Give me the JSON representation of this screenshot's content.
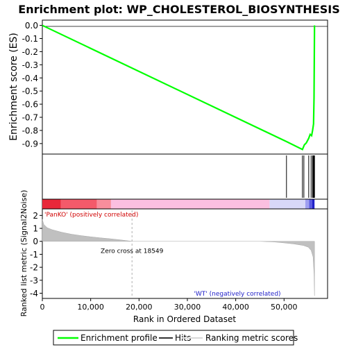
{
  "chart_data": {
    "type": "line",
    "title": "Enrichment plot: WP_CHOLESTEROL_BIOSYNTHESIS",
    "top_panel": {
      "ylabel": "Enrichment score (ES)",
      "ylim": [
        -0.98,
        0.04
      ],
      "yticks": [
        0.0,
        -0.1,
        -0.2,
        -0.3,
        -0.4,
        -0.5,
        -0.6,
        -0.7,
        -0.8,
        -0.9
      ],
      "ytick_labels": [
        "0.0",
        "-0.1",
        "-0.2",
        "-0.3",
        "-0.4",
        "-0.5",
        "-0.6",
        "-0.7",
        "-0.8",
        "-0.9"
      ],
      "series": [
        {
          "name": "Enrichment profile",
          "color": "#00ff00",
          "x": [
            0,
            50500,
            53800,
            54200,
            54600,
            55100,
            55400,
            55700,
            55900,
            56100,
            56200,
            56300
          ],
          "y": [
            0.0,
            -0.885,
            -0.945,
            -0.91,
            -0.895,
            -0.86,
            -0.83,
            -0.84,
            -0.8,
            -0.75,
            -0.55,
            0.0
          ]
        }
      ]
    },
    "hits": [
      50500,
      53800,
      54100,
      55100,
      55600,
      55900,
      56000,
      56100,
      56200,
      56300
    ],
    "bar_segments": [
      {
        "x0": 0,
        "x1": 3800,
        "color": "#e8283a"
      },
      {
        "x0": 3800,
        "x1": 11300,
        "color": "#f45a6a"
      },
      {
        "x0": 11300,
        "x1": 14200,
        "color": "#f88e9c"
      },
      {
        "x0": 14200,
        "x1": 47000,
        "color": "#fbbfe0"
      },
      {
        "x0": 47000,
        "x1": 54400,
        "color": "#d8d8f8"
      },
      {
        "x0": 54400,
        "x1": 55200,
        "color": "#9e9ef0"
      },
      {
        "x0": 55200,
        "x1": 55800,
        "color": "#5a5ae0"
      },
      {
        "x0": 55800,
        "x1": 56300,
        "color": "#2020c8"
      }
    ],
    "bottom_panel": {
      "ylabel": "Ranked list metric (Signal2Noise)",
      "ylim": [
        -4.4,
        2.5
      ],
      "yticks": [
        2,
        1,
        0,
        -1,
        -2,
        -3,
        -4
      ],
      "ytick_labels": [
        "2",
        "1",
        "0",
        "-1",
        "-2",
        "-3",
        "-4"
      ],
      "metric_x": [
        0,
        300,
        1000,
        2000,
        4000,
        6000,
        8000,
        10000,
        12000,
        14000,
        16000,
        18549,
        25000,
        35000,
        45000,
        48000,
        50000,
        52000,
        54000,
        55000,
        55600,
        56000,
        56200,
        56300
      ],
      "metric_y": [
        1.7,
        1.3,
        1.05,
        0.9,
        0.7,
        0.55,
        0.44,
        0.35,
        0.27,
        0.2,
        0.12,
        0.0,
        0.0,
        0.0,
        0.0,
        -0.05,
        -0.12,
        -0.2,
        -0.32,
        -0.45,
        -0.7,
        -1.2,
        -2.5,
        -4.2
      ],
      "zero_cross": 18549,
      "zero_cross_label": "Zero cross at 18549",
      "pos_label": "'PanKO' (positively correlated)",
      "neg_label": "'WT' (negatively correlated)"
    },
    "xlabel": "Rank in Ordered Dataset",
    "xlim": [
      0,
      59000
    ],
    "xticks": [
      0,
      10000,
      20000,
      30000,
      40000,
      50000
    ],
    "xtick_labels": [
      "0",
      "10,000",
      "20,000",
      "30,000",
      "40,000",
      "50,000"
    ],
    "legend": {
      "placement": "bottom",
      "entries": [
        {
          "label": "Enrichment profile",
          "color": "#00ff00"
        },
        {
          "label": "Hits",
          "color": "#000000"
        },
        {
          "label": "Ranking metric scores",
          "color": "#c8c8c8"
        }
      ]
    }
  }
}
